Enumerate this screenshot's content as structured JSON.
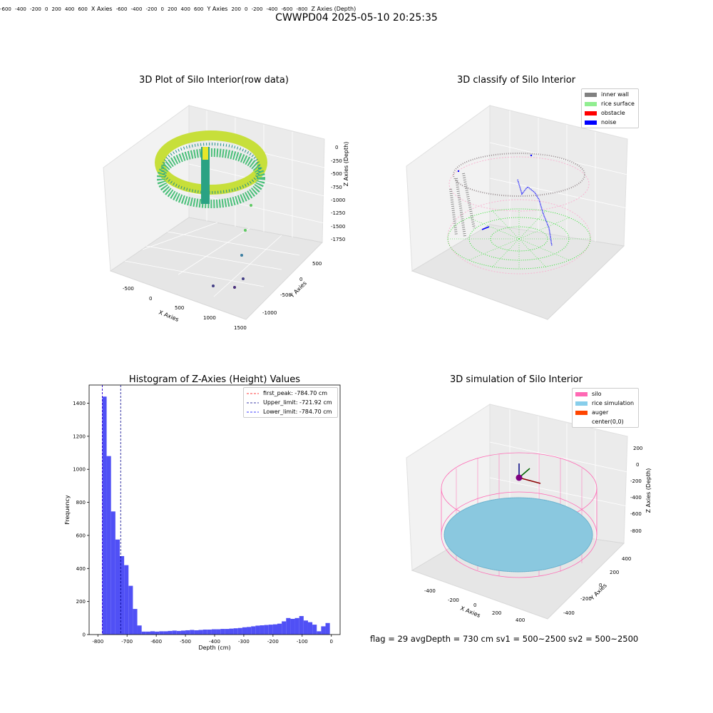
{
  "suptitle": "CWWPD04 2025-05-10 20:25:35",
  "status_line": "flag = 29  avgDepth = 730 cm  sv1 = 500~2500  sv2 = 500~2500",
  "plots": {
    "raw": {
      "title": "3D Plot of Silo Interior(row data)",
      "xlabel": "X Axies",
      "ylabel": "Y Axies",
      "zlabel": "Z Axies (Depth)",
      "xticks": [
        "-500",
        "0",
        "500",
        "1000",
        "1500"
      ],
      "yticks": [
        "-1000",
        "-500",
        "0",
        "500"
      ],
      "zticks": [
        "0",
        "-250",
        "-500",
        "-750",
        "-1000",
        "-1250",
        "-1500",
        "-1750"
      ]
    },
    "classify": {
      "title": "3D classify of Silo Interior",
      "xlabel": "X Axies",
      "ylabel": "Y Axies",
      "zlabel": "Z Axies (Depth)",
      "xticks": [
        "-600",
        "-400",
        "-200",
        "0",
        "200",
        "400",
        "600"
      ],
      "yticks": [
        "-600",
        "-400",
        "-200",
        "0",
        "200",
        "400",
        "600"
      ],
      "zticks": [
        "200",
        "0",
        "-200",
        "-400",
        "-600",
        "-800"
      ],
      "legend": [
        {
          "label": "inner wall",
          "color": "#808080"
        },
        {
          "label": "rice surface",
          "color": "#90ee90"
        },
        {
          "label": "obstacle",
          "color": "#ff0000"
        },
        {
          "label": "noise",
          "color": "#0000ff"
        }
      ]
    },
    "simulation": {
      "title": "3D simulation of Silo Interior",
      "xlabel": "X Axies",
      "ylabel": "Y Axies",
      "zlabel": "Z Axies (Depth)",
      "xticks": [
        "-400",
        "-200",
        "0",
        "200",
        "400"
      ],
      "yticks": [
        "-400",
        "-200",
        "0",
        "200",
        "400"
      ],
      "zticks": [
        "200",
        "0",
        "-200",
        "-400",
        "-600",
        "-800"
      ],
      "legend": [
        {
          "label": "silo",
          "color": "#ff69b4"
        },
        {
          "label": "rice simulation",
          "color": "#87ceeb"
        },
        {
          "label": "auger",
          "color": "#ff4500"
        },
        {
          "label": "center(0,0)",
          "color": "#ffffff"
        }
      ]
    }
  },
  "chart_data": [
    {
      "type": "bar",
      "title": "Histogram of Z-Axies (Height) Values",
      "xlabel": "Depth (cm)",
      "ylabel": "Frequency",
      "xlim": [
        -830,
        30
      ],
      "ylim": [
        0,
        1510
      ],
      "xticks": [
        -800,
        -700,
        -600,
        -500,
        -400,
        -300,
        -200,
        -100,
        0
      ],
      "yticks": [
        0,
        200,
        400,
        600,
        800,
        1000,
        1200,
        1400
      ],
      "bar_color": "#5050f5",
      "bins": [
        [
          -785,
          -770,
          1440
        ],
        [
          -770,
          -755,
          1080
        ],
        [
          -755,
          -740,
          745
        ],
        [
          -740,
          -725,
          575
        ],
        [
          -725,
          -710,
          475
        ],
        [
          -710,
          -695,
          420
        ],
        [
          -695,
          -680,
          295
        ],
        [
          -680,
          -665,
          155
        ],
        [
          -665,
          -650,
          55
        ],
        [
          -650,
          -635,
          18
        ],
        [
          -635,
          -620,
          18
        ],
        [
          -620,
          -605,
          20
        ],
        [
          -605,
          -590,
          18
        ],
        [
          -590,
          -575,
          20
        ],
        [
          -575,
          -560,
          20
        ],
        [
          -560,
          -545,
          22
        ],
        [
          -545,
          -530,
          24
        ],
        [
          -530,
          -515,
          22
        ],
        [
          -515,
          -500,
          24
        ],
        [
          -500,
          -485,
          26
        ],
        [
          -485,
          -470,
          28
        ],
        [
          -470,
          -455,
          26
        ],
        [
          -455,
          -440,
          28
        ],
        [
          -440,
          -425,
          30
        ],
        [
          -425,
          -410,
          30
        ],
        [
          -410,
          -395,
          32
        ],
        [
          -395,
          -380,
          32
        ],
        [
          -380,
          -365,
          34
        ],
        [
          -365,
          -350,
          34
        ],
        [
          -350,
          -335,
          36
        ],
        [
          -335,
          -320,
          38
        ],
        [
          -320,
          -305,
          40
        ],
        [
          -305,
          -290,
          44
        ],
        [
          -290,
          -275,
          46
        ],
        [
          -275,
          -260,
          50
        ],
        [
          -260,
          -245,
          54
        ],
        [
          -245,
          -230,
          56
        ],
        [
          -230,
          -215,
          58
        ],
        [
          -215,
          -200,
          60
        ],
        [
          -200,
          -185,
          62
        ],
        [
          -185,
          -170,
          66
        ],
        [
          -170,
          -155,
          80
        ],
        [
          -155,
          -140,
          100
        ],
        [
          -140,
          -125,
          95
        ],
        [
          -125,
          -110,
          100
        ],
        [
          -110,
          -95,
          112
        ],
        [
          -95,
          -80,
          85
        ],
        [
          -80,
          -65,
          75
        ],
        [
          -65,
          -50,
          60
        ],
        [
          -50,
          -35,
          20
        ],
        [
          -35,
          -20,
          50
        ],
        [
          -20,
          -5,
          70
        ]
      ],
      "vlines": [
        {
          "label": "first_peak: -784.70 cm",
          "x": -784.7,
          "color": "#ff0000"
        },
        {
          "label": "Upper_limit: -721.92 cm",
          "x": -721.92,
          "color": "#00008b"
        },
        {
          "label": "Lower_limit: -784.70 cm",
          "x": -784.7,
          "color": "#0000ff"
        }
      ]
    }
  ]
}
